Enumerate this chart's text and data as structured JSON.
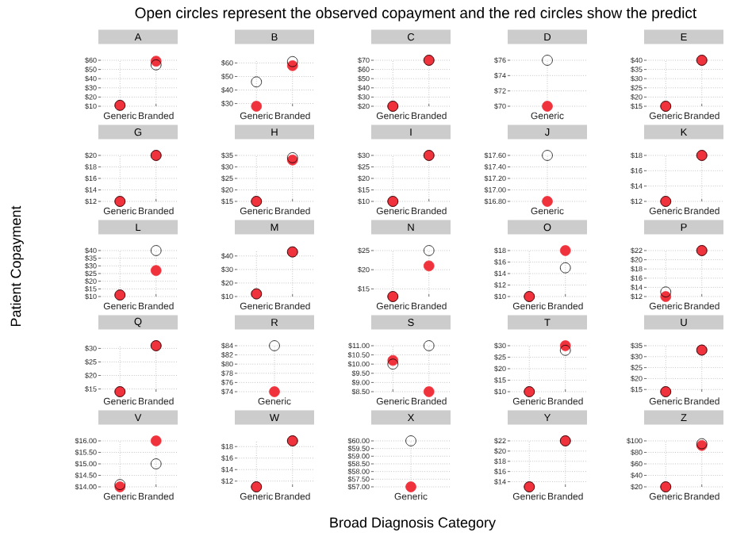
{
  "chart_data": [
    {
      "type": "other",
      "title": "Open circles represent the observed copayment and the red circles show the predict",
      "xlabel": "Broad Diagnosis Category",
      "ylabel": "Patient Copayment"
    },
    {
      "type": "scatter",
      "title": "A",
      "categories": [
        "Generic",
        "Branded"
      ],
      "marker": "circle",
      "grid": true,
      "ylim": [
        10,
        60
      ],
      "yticks": [
        {
          "value": 10,
          "label": "$10"
        },
        {
          "value": 20,
          "label": "$20"
        },
        {
          "value": 30,
          "label": "$30"
        },
        {
          "value": 40,
          "label": "$40"
        },
        {
          "value": 50,
          "label": "$50"
        },
        {
          "value": 60,
          "label": "$60"
        }
      ],
      "series": [
        {
          "color": "#000000",
          "values": [
            11,
            55
          ]
        },
        {
          "color": "#f0323c",
          "values": [
            11,
            59
          ]
        }
      ]
    },
    {
      "type": "scatter",
      "title": "B",
      "categories": [
        "Generic",
        "Branded"
      ],
      "marker": "circle",
      "grid": true,
      "ylim": [
        28,
        62
      ],
      "yticks": [
        {
          "value": 30,
          "label": "$30"
        },
        {
          "value": 40,
          "label": "$40"
        },
        {
          "value": 50,
          "label": "$50"
        },
        {
          "value": 60,
          "label": "$60"
        }
      ],
      "series": [
        {
          "color": "#000000",
          "values": [
            46,
            61
          ]
        },
        {
          "color": "#f0323c",
          "values": [
            28,
            58
          ]
        }
      ]
    },
    {
      "type": "scatter",
      "title": "C",
      "categories": [
        "Generic",
        "Branded"
      ],
      "marker": "circle",
      "grid": true,
      "ylim": [
        20,
        70
      ],
      "yticks": [
        {
          "value": 20,
          "label": "$20"
        },
        {
          "value": 30,
          "label": "$30"
        },
        {
          "value": 40,
          "label": "$40"
        },
        {
          "value": 50,
          "label": "$50"
        },
        {
          "value": 60,
          "label": "$60"
        },
        {
          "value": 70,
          "label": "$70"
        }
      ],
      "series": [
        {
          "color": "#000000",
          "values": [
            20,
            70
          ]
        },
        {
          "color": "#f0323c",
          "values": [
            20,
            70
          ]
        }
      ]
    },
    {
      "type": "scatter",
      "title": "D",
      "categories": [
        "Generic"
      ],
      "marker": "circle",
      "grid": true,
      "ylim": [
        70,
        76
      ],
      "yticks": [
        {
          "value": 70,
          "label": "$70"
        },
        {
          "value": 72,
          "label": "$72"
        },
        {
          "value": 74,
          "label": "$74"
        },
        {
          "value": 76,
          "label": "$76"
        }
      ],
      "series": [
        {
          "color": "#000000",
          "values": [
            76
          ]
        },
        {
          "color": "#f0323c",
          "values": [
            70
          ]
        }
      ]
    },
    {
      "type": "scatter",
      "title": "E",
      "categories": [
        "Generic",
        "Branded"
      ],
      "marker": "circle",
      "grid": true,
      "ylim": [
        15,
        40
      ],
      "yticks": [
        {
          "value": 15,
          "label": "$15"
        },
        {
          "value": 20,
          "label": "$20"
        },
        {
          "value": 25,
          "label": "$25"
        },
        {
          "value": 30,
          "label": "$30"
        },
        {
          "value": 35,
          "label": "$35"
        },
        {
          "value": 40,
          "label": "$40"
        }
      ],
      "series": [
        {
          "color": "#000000",
          "values": [
            15,
            40
          ]
        },
        {
          "color": "#f0323c",
          "values": [
            15,
            40
          ]
        }
      ]
    },
    {
      "type": "scatter",
      "title": "G",
      "categories": [
        "Generic",
        "Branded"
      ],
      "marker": "circle",
      "grid": true,
      "ylim": [
        12,
        20
      ],
      "yticks": [
        {
          "value": 12,
          "label": "$12"
        },
        {
          "value": 14,
          "label": "$14"
        },
        {
          "value": 16,
          "label": "$16"
        },
        {
          "value": 18,
          "label": "$18"
        },
        {
          "value": 20,
          "label": "$20"
        }
      ],
      "series": [
        {
          "color": "#000000",
          "values": [
            12,
            20
          ]
        },
        {
          "color": "#f0323c",
          "values": [
            12,
            20
          ]
        }
      ]
    },
    {
      "type": "scatter",
      "title": "H",
      "categories": [
        "Generic",
        "Branded"
      ],
      "marker": "circle",
      "grid": true,
      "ylim": [
        15,
        35
      ],
      "yticks": [
        {
          "value": 15,
          "label": "$15"
        },
        {
          "value": 20,
          "label": "$20"
        },
        {
          "value": 25,
          "label": "$25"
        },
        {
          "value": 30,
          "label": "$30"
        },
        {
          "value": 35,
          "label": "$35"
        }
      ],
      "series": [
        {
          "color": "#000000",
          "values": [
            15,
            34
          ]
        },
        {
          "color": "#f0323c",
          "values": [
            15,
            33
          ]
        }
      ]
    },
    {
      "type": "scatter",
      "title": "I",
      "categories": [
        "Generic",
        "Branded"
      ],
      "marker": "circle",
      "grid": true,
      "ylim": [
        10,
        30
      ],
      "yticks": [
        {
          "value": 10,
          "label": "$10"
        },
        {
          "value": 15,
          "label": "$15"
        },
        {
          "value": 20,
          "label": "$20"
        },
        {
          "value": 25,
          "label": "$25"
        },
        {
          "value": 30,
          "label": "$30"
        }
      ],
      "series": [
        {
          "color": "#000000",
          "values": [
            10,
            30
          ]
        },
        {
          "color": "#f0323c",
          "values": [
            10,
            30
          ]
        }
      ]
    },
    {
      "type": "scatter",
      "title": "J",
      "categories": [
        "Generic"
      ],
      "marker": "circle",
      "grid": true,
      "ylim": [
        16.8,
        17.6
      ],
      "yticks": [
        {
          "value": 16.8,
          "label": "$16.80"
        },
        {
          "value": 17.0,
          "label": "$17.00"
        },
        {
          "value": 17.2,
          "label": "$17.20"
        },
        {
          "value": 17.4,
          "label": "$17.40"
        },
        {
          "value": 17.6,
          "label": "$17.60"
        }
      ],
      "series": [
        {
          "color": "#000000",
          "values": [
            17.6
          ]
        },
        {
          "color": "#f0323c",
          "values": [
            16.8
          ]
        }
      ]
    },
    {
      "type": "scatter",
      "title": "K",
      "categories": [
        "Generic",
        "Branded"
      ],
      "marker": "circle",
      "grid": true,
      "ylim": [
        12,
        18
      ],
      "yticks": [
        {
          "value": 12,
          "label": "$12"
        },
        {
          "value": 14,
          "label": "$14"
        },
        {
          "value": 16,
          "label": "$16"
        },
        {
          "value": 18,
          "label": "$18"
        }
      ],
      "series": [
        {
          "color": "#000000",
          "values": [
            12,
            18
          ]
        },
        {
          "color": "#f0323c",
          "values": [
            12,
            18
          ]
        }
      ]
    },
    {
      "type": "scatter",
      "title": "L",
      "categories": [
        "Generic",
        "Branded"
      ],
      "marker": "circle",
      "grid": true,
      "ylim": [
        10,
        40
      ],
      "yticks": [
        {
          "value": 10,
          "label": "$10"
        },
        {
          "value": 15,
          "label": "$15"
        },
        {
          "value": 20,
          "label": "$20"
        },
        {
          "value": 25,
          "label": "$25"
        },
        {
          "value": 30,
          "label": "$30"
        },
        {
          "value": 35,
          "label": "$35"
        },
        {
          "value": 40,
          "label": "$40"
        }
      ],
      "series": [
        {
          "color": "#000000",
          "values": [
            11,
            40
          ]
        },
        {
          "color": "#f0323c",
          "values": [
            11,
            27
          ]
        }
      ]
    },
    {
      "type": "scatter",
      "title": "M",
      "categories": [
        "Generic",
        "Branded"
      ],
      "marker": "circle",
      "grid": true,
      "ylim": [
        10,
        44
      ],
      "yticks": [
        {
          "value": 10,
          "label": "$10"
        },
        {
          "value": 20,
          "label": "$20"
        },
        {
          "value": 30,
          "label": "$30"
        },
        {
          "value": 40,
          "label": "$40"
        }
      ],
      "series": [
        {
          "color": "#000000",
          "values": [
            12,
            43
          ]
        },
        {
          "color": "#f0323c",
          "values": [
            12,
            43
          ]
        }
      ]
    },
    {
      "type": "scatter",
      "title": "N",
      "categories": [
        "Generic",
        "Branded"
      ],
      "marker": "circle",
      "grid": true,
      "ylim": [
        13,
        25
      ],
      "yticks": [
        {
          "value": 15,
          "label": "$15"
        },
        {
          "value": 20,
          "label": "$20"
        },
        {
          "value": 25,
          "label": "$25"
        }
      ],
      "series": [
        {
          "color": "#000000",
          "values": [
            13,
            25
          ]
        },
        {
          "color": "#f0323c",
          "values": [
            13,
            21
          ]
        }
      ]
    },
    {
      "type": "scatter",
      "title": "O",
      "categories": [
        "Generic",
        "Branded"
      ],
      "marker": "circle",
      "grid": true,
      "ylim": [
        10,
        18
      ],
      "yticks": [
        {
          "value": 10,
          "label": "$10"
        },
        {
          "value": 12,
          "label": "$12"
        },
        {
          "value": 14,
          "label": "$14"
        },
        {
          "value": 16,
          "label": "$16"
        },
        {
          "value": 18,
          "label": "$18"
        }
      ],
      "series": [
        {
          "color": "#000000",
          "values": [
            10,
            15
          ]
        },
        {
          "color": "#f0323c",
          "values": [
            10,
            18
          ]
        }
      ]
    },
    {
      "type": "scatter",
      "title": "P",
      "categories": [
        "Generic",
        "Branded"
      ],
      "marker": "circle",
      "grid": true,
      "ylim": [
        12,
        22
      ],
      "yticks": [
        {
          "value": 12,
          "label": "$12"
        },
        {
          "value": 14,
          "label": "$14"
        },
        {
          "value": 16,
          "label": "$16"
        },
        {
          "value": 18,
          "label": "$18"
        },
        {
          "value": 20,
          "label": "$20"
        },
        {
          "value": 22,
          "label": "$22"
        }
      ],
      "series": [
        {
          "color": "#000000",
          "values": [
            13,
            22
          ]
        },
        {
          "color": "#f0323c",
          "values": [
            12,
            22
          ]
        }
      ]
    },
    {
      "type": "scatter",
      "title": "Q",
      "categories": [
        "Generic",
        "Branded"
      ],
      "marker": "circle",
      "grid": true,
      "ylim": [
        14,
        31
      ],
      "yticks": [
        {
          "value": 15,
          "label": "$15"
        },
        {
          "value": 20,
          "label": "$20"
        },
        {
          "value": 25,
          "label": "$25"
        },
        {
          "value": 30,
          "label": "$30"
        }
      ],
      "series": [
        {
          "color": "#000000",
          "values": [
            14,
            31
          ]
        },
        {
          "color": "#f0323c",
          "values": [
            14,
            31
          ]
        }
      ]
    },
    {
      "type": "scatter",
      "title": "R",
      "categories": [
        "Generic"
      ],
      "marker": "circle",
      "grid": true,
      "ylim": [
        74,
        84
      ],
      "yticks": [
        {
          "value": 74,
          "label": "$74"
        },
        {
          "value": 76,
          "label": "$76"
        },
        {
          "value": 78,
          "label": "$78"
        },
        {
          "value": 80,
          "label": "$80"
        },
        {
          "value": 82,
          "label": "$82"
        },
        {
          "value": 84,
          "label": "$84"
        }
      ],
      "series": [
        {
          "color": "#000000",
          "values": [
            84
          ]
        },
        {
          "color": "#f0323c",
          "values": [
            74
          ]
        }
      ]
    },
    {
      "type": "scatter",
      "title": "S",
      "categories": [
        "Generic",
        "Branded"
      ],
      "marker": "circle",
      "grid": true,
      "ylim": [
        8.5,
        11
      ],
      "yticks": [
        {
          "value": 8.5,
          "label": "$8.50"
        },
        {
          "value": 9.0,
          "label": "$9.00"
        },
        {
          "value": 9.5,
          "label": "$9.50"
        },
        {
          "value": 10.0,
          "label": "$10.00"
        },
        {
          "value": 10.5,
          "label": "$10.50"
        },
        {
          "value": 11.0,
          "label": "$11.00"
        }
      ],
      "series": [
        {
          "color": "#000000",
          "values": [
            10.0,
            11.0
          ]
        },
        {
          "color": "#f0323c",
          "values": [
            10.2,
            8.5
          ]
        }
      ]
    },
    {
      "type": "scatter",
      "title": "T",
      "categories": [
        "Generic",
        "Branded"
      ],
      "marker": "circle",
      "grid": true,
      "ylim": [
        10,
        30
      ],
      "yticks": [
        {
          "value": 10,
          "label": "$10"
        },
        {
          "value": 15,
          "label": "$15"
        },
        {
          "value": 20,
          "label": "$20"
        },
        {
          "value": 25,
          "label": "$25"
        },
        {
          "value": 30,
          "label": "$30"
        }
      ],
      "series": [
        {
          "color": "#000000",
          "values": [
            10,
            28
          ]
        },
        {
          "color": "#f0323c",
          "values": [
            10,
            30
          ]
        }
      ]
    },
    {
      "type": "scatter",
      "title": "U",
      "categories": [
        "Generic",
        "Branded"
      ],
      "marker": "circle",
      "grid": true,
      "ylim": [
        14,
        35
      ],
      "yticks": [
        {
          "value": 15,
          "label": "$15"
        },
        {
          "value": 20,
          "label": "$20"
        },
        {
          "value": 25,
          "label": "$25"
        },
        {
          "value": 30,
          "label": "$30"
        },
        {
          "value": 35,
          "label": "$35"
        }
      ],
      "series": [
        {
          "color": "#000000",
          "values": [
            14,
            33
          ]
        },
        {
          "color": "#f0323c",
          "values": [
            14,
            33
          ]
        }
      ]
    },
    {
      "type": "scatter",
      "title": "V",
      "categories": [
        "Generic",
        "Branded"
      ],
      "marker": "circle",
      "grid": true,
      "ylim": [
        14,
        16
      ],
      "yticks": [
        {
          "value": 14.0,
          "label": "$14.00"
        },
        {
          "value": 14.5,
          "label": "$14.50"
        },
        {
          "value": 15.0,
          "label": "$15.00"
        },
        {
          "value": 15.5,
          "label": "$15.50"
        },
        {
          "value": 16.0,
          "label": "$16.00"
        }
      ],
      "series": [
        {
          "color": "#000000",
          "values": [
            14.1,
            15.0
          ]
        },
        {
          "color": "#f0323c",
          "values": [
            14.0,
            16.0
          ]
        }
      ]
    },
    {
      "type": "scatter",
      "title": "W",
      "categories": [
        "Generic",
        "Branded"
      ],
      "marker": "circle",
      "grid": true,
      "ylim": [
        11,
        19
      ],
      "yticks": [
        {
          "value": 12,
          "label": "$12"
        },
        {
          "value": 14,
          "label": "$14"
        },
        {
          "value": 16,
          "label": "$16"
        },
        {
          "value": 18,
          "label": "$18"
        }
      ],
      "series": [
        {
          "color": "#000000",
          "values": [
            11,
            19
          ]
        },
        {
          "color": "#f0323c",
          "values": [
            11,
            19
          ]
        }
      ]
    },
    {
      "type": "scatter",
      "title": "X",
      "categories": [
        "Generic"
      ],
      "marker": "circle",
      "grid": true,
      "ylim": [
        57,
        60
      ],
      "yticks": [
        {
          "value": 57.0,
          "label": "$57.00"
        },
        {
          "value": 57.5,
          "label": "$57.50"
        },
        {
          "value": 58.0,
          "label": "$58.00"
        },
        {
          "value": 58.5,
          "label": "$58.50"
        },
        {
          "value": 59.0,
          "label": "$59.00"
        },
        {
          "value": 59.5,
          "label": "$59.50"
        },
        {
          "value": 60.0,
          "label": "$60.00"
        }
      ],
      "series": [
        {
          "color": "#000000",
          "values": [
            60
          ]
        },
        {
          "color": "#f0323c",
          "values": [
            57
          ]
        }
      ]
    },
    {
      "type": "scatter",
      "title": "Y",
      "categories": [
        "Generic",
        "Branded"
      ],
      "marker": "circle",
      "grid": true,
      "ylim": [
        13,
        22
      ],
      "yticks": [
        {
          "value": 14,
          "label": "$14"
        },
        {
          "value": 16,
          "label": "$16"
        },
        {
          "value": 18,
          "label": "$18"
        },
        {
          "value": 20,
          "label": "$20"
        },
        {
          "value": 22,
          "label": "$22"
        }
      ],
      "series": [
        {
          "color": "#000000",
          "values": [
            13,
            22
          ]
        },
        {
          "color": "#f0323c",
          "values": [
            13,
            22
          ]
        }
      ]
    },
    {
      "type": "scatter",
      "title": "Z",
      "categories": [
        "Generic",
        "Branded"
      ],
      "marker": "circle",
      "grid": true,
      "ylim": [
        20,
        100
      ],
      "yticks": [
        {
          "value": 20,
          "label": "$20"
        },
        {
          "value": 40,
          "label": "$40"
        },
        {
          "value": 60,
          "label": "$60"
        },
        {
          "value": 80,
          "label": "$80"
        },
        {
          "value": 100,
          "label": "$100"
        }
      ],
      "series": [
        {
          "color": "#000000",
          "values": [
            20,
            95
          ]
        },
        {
          "color": "#f0323c",
          "values": [
            20,
            92
          ]
        }
      ]
    }
  ]
}
